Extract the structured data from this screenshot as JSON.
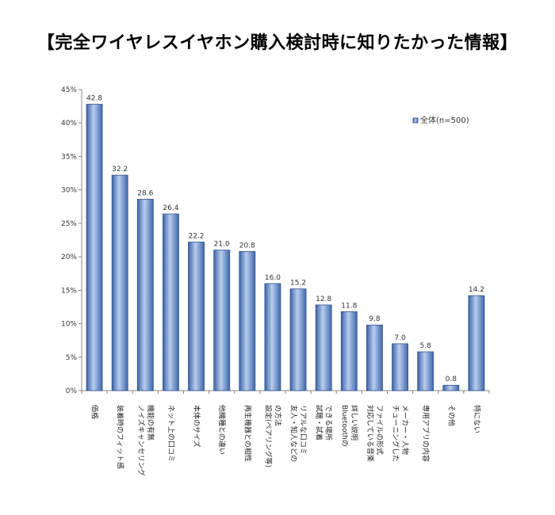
{
  "title": "【完全ワイヤレスイヤホン購入検討時に知りたかった情報】",
  "chart_data": {
    "type": "bar",
    "title": "【完全ワイヤレスイヤホン購入検討時に知りたかった情報】",
    "xlabel": "",
    "ylabel": "",
    "ylim": [
      0,
      45
    ],
    "yticks": [
      0,
      5,
      10,
      15,
      20,
      25,
      30,
      35,
      40,
      45
    ],
    "ytick_labels": [
      "0%",
      "5%",
      "10%",
      "15%",
      "20%",
      "25%",
      "30%",
      "35%",
      "40%",
      "45%"
    ],
    "grid": false,
    "legend_position": "top-right",
    "categories": [
      [
        "価格"
      ],
      [
        "装着時のフィット感"
      ],
      [
        "ノイズキャンセリング",
        "機能の有無"
      ],
      [
        "ネット上の口コミ"
      ],
      [
        "本体のサイズ"
      ],
      [
        "他機種との違い"
      ],
      [
        "再生機器との相性"
      ],
      [
        "設定(ペアリング等)",
        "の方法"
      ],
      [
        "友人・知人などの",
        "リアルな口コミ"
      ],
      [
        "試聴・試着",
        "できる場所"
      ],
      [
        "Bluetoothの",
        "詳しい説明"
      ],
      [
        "対応している音楽",
        "ファイルの形式"
      ],
      [
        "チューニングした",
        "メーカー・人物"
      ],
      [
        "専用アプリの内容"
      ],
      [
        "その他"
      ],
      [
        "特にない"
      ]
    ],
    "series": [
      {
        "name": "全体(n=500)",
        "color": "#4f7fc4",
        "values": [
          42.8,
          32.2,
          28.6,
          26.4,
          22.2,
          21.0,
          20.8,
          16.0,
          15.2,
          12.8,
          11.8,
          9.8,
          7.0,
          5.8,
          0.8,
          14.2
        ],
        "labels": [
          "42.8",
          "32.2",
          "28.6",
          "26.4",
          "22.2",
          "21.0",
          "20.8",
          "16.0",
          "15.2",
          "12.8",
          "11.8",
          "9.8",
          "7.0",
          "5.8",
          "0.8",
          "14.2"
        ]
      }
    ]
  }
}
